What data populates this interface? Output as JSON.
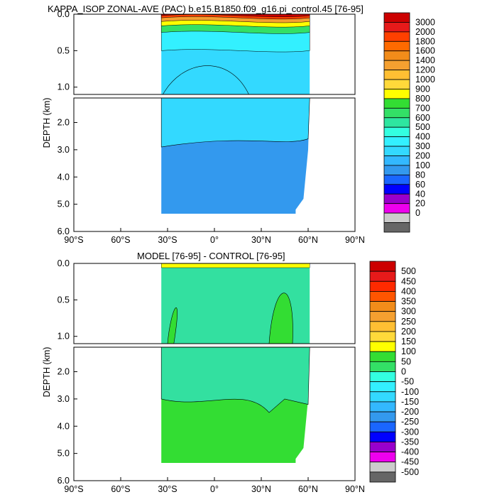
{
  "figure": {
    "panels": [
      {
        "title": "KAPPA_ISOP ZONAL-AVE (PAC) b.e15.B1850.f09_g16.pi_control.45 [76-95]",
        "ylabel": "DEPTH (km)",
        "upper_ticks": [
          "0.0",
          "0.5",
          "1.0"
        ],
        "lower_ticks": [
          "2.0",
          "3.0",
          "4.0",
          "5.0",
          "6.0"
        ],
        "x_ticks": [
          "90°S",
          "60°S",
          "30°S",
          "0°",
          "30°N",
          "60°N",
          "90°N"
        ],
        "colorbar": {
          "labels": [
            "3000",
            "2000",
            "1800",
            "1600",
            "1400",
            "1200",
            "1000",
            "900",
            "800",
            "700",
            "600",
            "500",
            "400",
            "300",
            "200",
            "100",
            "80",
            "60",
            "40",
            "20",
            "0"
          ],
          "colors": [
            "#cc0000",
            "#e61a1a",
            "#ff4000",
            "#ff6a00",
            "#f28c1a",
            "#f5a030",
            "#ffbf33",
            "#ffd93a",
            "#ffff00",
            "#33dd33",
            "#33e066",
            "#2ee6a0",
            "#33ffe0",
            "#33f0ff",
            "#33d9ff",
            "#33b8ff",
            "#3399ee",
            "#1a66ff",
            "#0000ff",
            "#9900cc",
            "#ee00ee",
            "#cccccc",
            "#666666"
          ]
        },
        "field": {
          "top": "#33d9ff",
          "deep": "#3399ee",
          "upper_band_colors": [
            "#cc0000",
            "#ff4000",
            "#f5a030",
            "#ffff00",
            "#33e066",
            "#33f0ff"
          ]
        }
      },
      {
        "title": "MODEL [76-95] - CONTROL [76-95]",
        "ylabel": "DEPTH (km)",
        "upper_ticks": [
          "0.0",
          "0.5",
          "1.0"
        ],
        "lower_ticks": [
          "2.0",
          "3.0",
          "4.0",
          "5.0",
          "6.0"
        ],
        "x_ticks": [
          "90°S",
          "60°S",
          "30°S",
          "0°",
          "30°N",
          "60°N",
          "90°N"
        ],
        "colorbar": {
          "labels": [
            "500",
            "450",
            "400",
            "350",
            "300",
            "250",
            "200",
            "150",
            "100",
            "50",
            "0",
            "-50",
            "-100",
            "-150",
            "-200",
            "-250",
            "-300",
            "-350",
            "-400",
            "-450",
            "-500"
          ],
          "colors": [
            "#cc0000",
            "#e61a1a",
            "#ff2a00",
            "#ff5500",
            "#f28c1a",
            "#f5a030",
            "#ffbf33",
            "#ffd93a",
            "#ffff00",
            "#33dd33",
            "#33e066",
            "#33ffe0",
            "#33f0ff",
            "#33d9ff",
            "#33b8ff",
            "#3399ee",
            "#1a66ff",
            "#0000ff",
            "#9900cc",
            "#ee00ee",
            "#cccccc",
            "#666666"
          ]
        },
        "field": {
          "top": "#33e0a0",
          "deep": "#33dd33"
        }
      }
    ]
  },
  "chart_data": [
    {
      "type": "heatmap",
      "title": "KAPPA_ISOP ZONAL-AVE (PAC) b.e15.B1850.f09_g16.pi_control.45 [76-95]",
      "xlabel": "",
      "ylabel": "DEPTH (km)",
      "x_range": [
        -90,
        90
      ],
      "y_range_km": [
        0,
        6
      ],
      "x_ticks": [
        -90,
        -60,
        -30,
        0,
        30,
        60,
        90
      ],
      "y_ticks_km": [
        0.0,
        0.5,
        1.0,
        2.0,
        3.0,
        4.0,
        5.0,
        6.0
      ],
      "levels": [
        0,
        20,
        40,
        60,
        80,
        100,
        200,
        300,
        400,
        500,
        600,
        700,
        800,
        900,
        1000,
        1200,
        1400,
        1600,
        1800,
        2000,
        3000
      ],
      "basin_extent_lat": [
        -34,
        60
      ]
    },
    {
      "type": "heatmap",
      "title": "MODEL [76-95] - CONTROL [76-95]",
      "xlabel": "",
      "ylabel": "DEPTH (km)",
      "x_range": [
        -90,
        90
      ],
      "y_range_km": [
        0,
        6
      ],
      "x_ticks": [
        -90,
        -60,
        -30,
        0,
        30,
        60,
        90
      ],
      "y_ticks_km": [
        0.0,
        0.5,
        1.0,
        2.0,
        3.0,
        4.0,
        5.0,
        6.0
      ],
      "levels": [
        -500,
        -450,
        -400,
        -350,
        -300,
        -250,
        -200,
        -150,
        -100,
        -50,
        0,
        50,
        100,
        150,
        200,
        250,
        300,
        350,
        400,
        450,
        500
      ],
      "basin_extent_lat": [
        -34,
        60
      ]
    }
  ]
}
